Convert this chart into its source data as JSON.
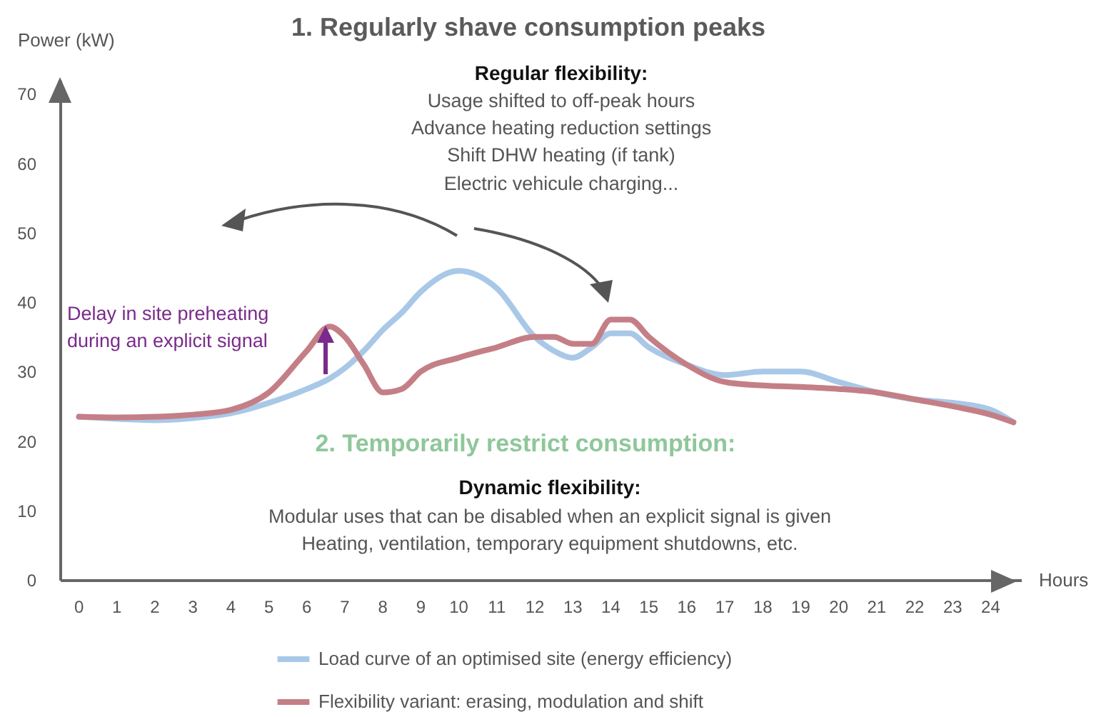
{
  "chart_data": {
    "type": "line",
    "title": "1. Regularly shave consumption peaks",
    "xlabel": "Hours",
    "ylabel": "Power (kW)",
    "x": [
      0,
      1,
      2,
      3,
      4,
      5,
      6,
      6.6,
      7,
      7.5,
      8,
      8.5,
      9,
      10,
      11,
      12,
      12.5,
      13,
      13.5,
      14,
      14.5,
      15,
      16,
      17,
      18,
      19,
      20,
      21,
      22,
      23,
      24,
      24.6
    ],
    "series": [
      {
        "name": "Load curve of an optimised site (energy efficiency)",
        "color": "#a9c8e8",
        "values": [
          23.5,
          23.2,
          23,
          23.3,
          24,
          25.5,
          27.5,
          29,
          30.5,
          33,
          36,
          38.5,
          41.5,
          44.5,
          42,
          35,
          33,
          32,
          33.5,
          35.5,
          35.5,
          33.5,
          31,
          29.5,
          30,
          30,
          28.5,
          27,
          26,
          25.5,
          24.5,
          22.7
        ]
      },
      {
        "name": "Flexibility variant: erasing, modulation and shift",
        "color": "#c47f86",
        "values": [
          23.5,
          23.4,
          23.5,
          23.8,
          24.5,
          27,
          33,
          36.5,
          35,
          31,
          27,
          27.5,
          30,
          32,
          33.5,
          35,
          35,
          34,
          34,
          37.5,
          37.5,
          35,
          31,
          28.5,
          28,
          27.8,
          27.5,
          27,
          26,
          25,
          23.8,
          22.7
        ]
      }
    ],
    "xlim": [
      -0.5,
      24.8
    ],
    "ylim": [
      0,
      72
    ],
    "xticks": [
      0,
      1,
      2,
      3,
      4,
      5,
      6,
      7,
      8,
      9,
      10,
      11,
      12,
      13,
      14,
      15,
      16,
      17,
      18,
      19,
      20,
      21,
      22,
      23,
      24
    ],
    "yticks": [
      0,
      10,
      20,
      30,
      40,
      50,
      60,
      70
    ],
    "legend": "bottom",
    "annotations": [
      "Regular flexibility:",
      "Usage shifted to off-peak hours",
      "Advance heating reduction settings",
      "Shift DHW heating (if tank)",
      "Electric vehicule charging...",
      "Delay in site preheating",
      "during an explicit signal",
      "2. Temporarily restrict consumption:",
      "Dynamic flexibility:",
      "Modular uses that can be disabled when an explicit signal is given",
      "Heating, ventilation, temporary equipment shutdowns, etc."
    ]
  }
}
